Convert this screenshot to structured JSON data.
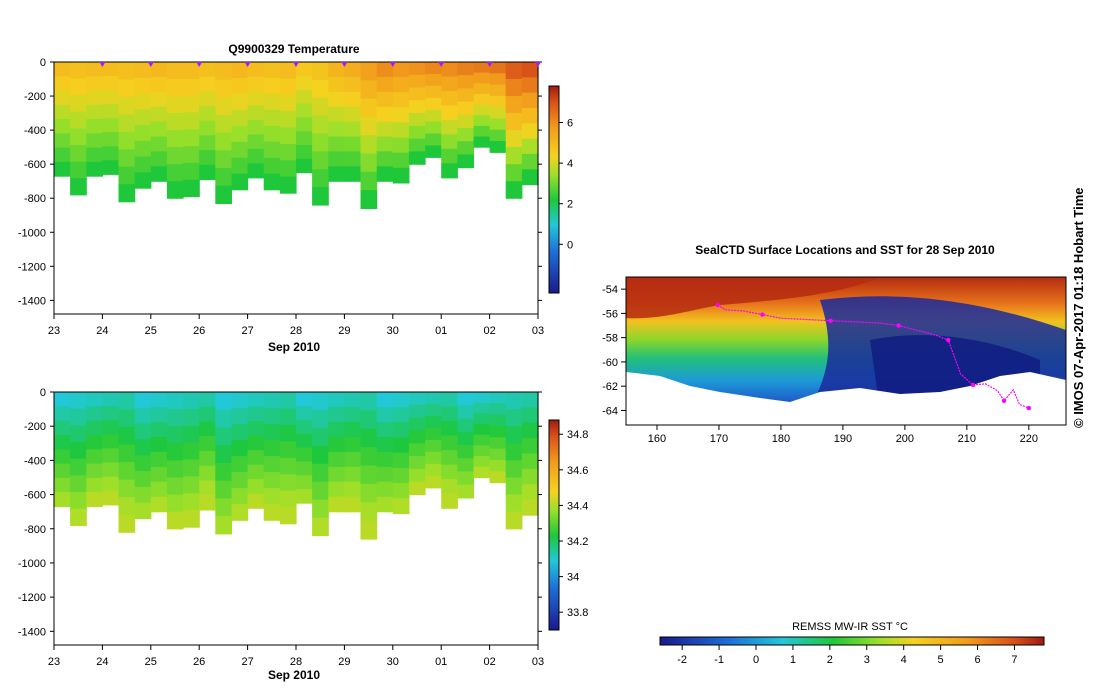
{
  "chart_data": [
    {
      "type": "heatmap",
      "title": "Q9900329  Temperature",
      "xlabel": "Sep 2010",
      "ylabel": "",
      "x_ticks": [
        "23",
        "24",
        "25",
        "26",
        "27",
        "28",
        "29",
        "30",
        "01",
        "02",
        "03"
      ],
      "y_ticks": [
        "0",
        "-200",
        "-400",
        "-600",
        "-800",
        "-1000",
        "-1200",
        "-1400"
      ],
      "ylim": [
        -1480,
        0
      ],
      "colorbar_ticks": [
        "0",
        "2",
        "4",
        "6"
      ],
      "colorbar_range": [
        -2.4,
        7.8
      ],
      "profile_max_depth": [
        -670,
        -780,
        -670,
        -660,
        -820,
        -740,
        -700,
        -800,
        -790,
        -690,
        -830,
        -750,
        -680,
        -750,
        -770,
        -650,
        -840,
        -700,
        -700,
        -860,
        -700,
        -710,
        -600,
        -560,
        -680,
        -620,
        -500,
        -530,
        -800,
        -720
      ],
      "profile_surface_temp": [
        4.9,
        4.8,
        4.9,
        4.9,
        4.8,
        4.9,
        5.0,
        4.9,
        4.9,
        4.8,
        4.9,
        5.0,
        4.9,
        4.8,
        4.9,
        4.6,
        4.7,
        5.1,
        5.3,
        5.6,
        6.0,
        5.8,
        5.9,
        6.1,
        6.0,
        6.2,
        6.3,
        6.4,
        6.8,
        7.0
      ]
    },
    {
      "type": "heatmap",
      "title": "",
      "xlabel": "Sep 2010",
      "ylabel": "",
      "x_ticks": [
        "23",
        "24",
        "25",
        "26",
        "27",
        "28",
        "29",
        "30",
        "01",
        "02",
        "03"
      ],
      "y_ticks": [
        "0",
        "-200",
        "-400",
        "-600",
        "-800",
        "-1000",
        "-1200",
        "-1400"
      ],
      "ylim": [
        -1480,
        0
      ],
      "colorbar_ticks": [
        "33.8",
        "34",
        "34.2",
        "34.4",
        "34.6",
        "34.8"
      ],
      "colorbar_range": [
        33.7,
        34.88
      ],
      "profile_max_depth": [
        -670,
        -780,
        -670,
        -660,
        -820,
        -740,
        -700,
        -800,
        -790,
        -690,
        -830,
        -750,
        -680,
        -750,
        -770,
        -650,
        -840,
        -700,
        -700,
        -860,
        -700,
        -710,
        -600,
        -560,
        -680,
        -620,
        -500,
        -530,
        -800,
        -720
      ]
    },
    {
      "type": "heatmap",
      "title": "SealCTD Surface Locations and SST for 28 Sep 2010",
      "xlabel": "",
      "ylabel": "",
      "x_ticks": [
        "160",
        "170",
        "180",
        "190",
        "200",
        "210",
        "220"
      ],
      "y_ticks": [
        "-54",
        "-56",
        "-58",
        "-60",
        "-62",
        "-64"
      ],
      "xlim": [
        155,
        226
      ],
      "ylim": [
        -65.2,
        -53
      ],
      "colorbar_title": "REMSS MW-IR SST °C",
      "colorbar_ticks": [
        "-2",
        "-1",
        "0",
        "1",
        "2",
        "3",
        "4",
        "5",
        "6",
        "7"
      ],
      "colorbar_range": [
        -2.6,
        7.8
      ],
      "track": [
        [
          169.8,
          -55.3
        ],
        [
          171,
          -55.7
        ],
        [
          174,
          -55.8
        ],
        [
          177,
          -56.1
        ],
        [
          180,
          -56.4
        ],
        [
          184,
          -56.5
        ],
        [
          188,
          -56.6
        ],
        [
          192,
          -56.7
        ],
        [
          196,
          -56.8
        ],
        [
          199,
          -57.0
        ],
        [
          202,
          -57.4
        ],
        [
          205,
          -57.8
        ],
        [
          207,
          -58.2
        ],
        [
          208,
          -59.6
        ],
        [
          209,
          -61.0
        ],
        [
          211,
          -61.9
        ],
        [
          213,
          -61.8
        ],
        [
          215,
          -62.4
        ],
        [
          216,
          -63.2
        ],
        [
          217.5,
          -62.3
        ],
        [
          218.5,
          -63.5
        ],
        [
          220,
          -63.8
        ]
      ]
    }
  ],
  "watermark": "© IMOS 07-Apr-2017 01:18 Hobart Time"
}
